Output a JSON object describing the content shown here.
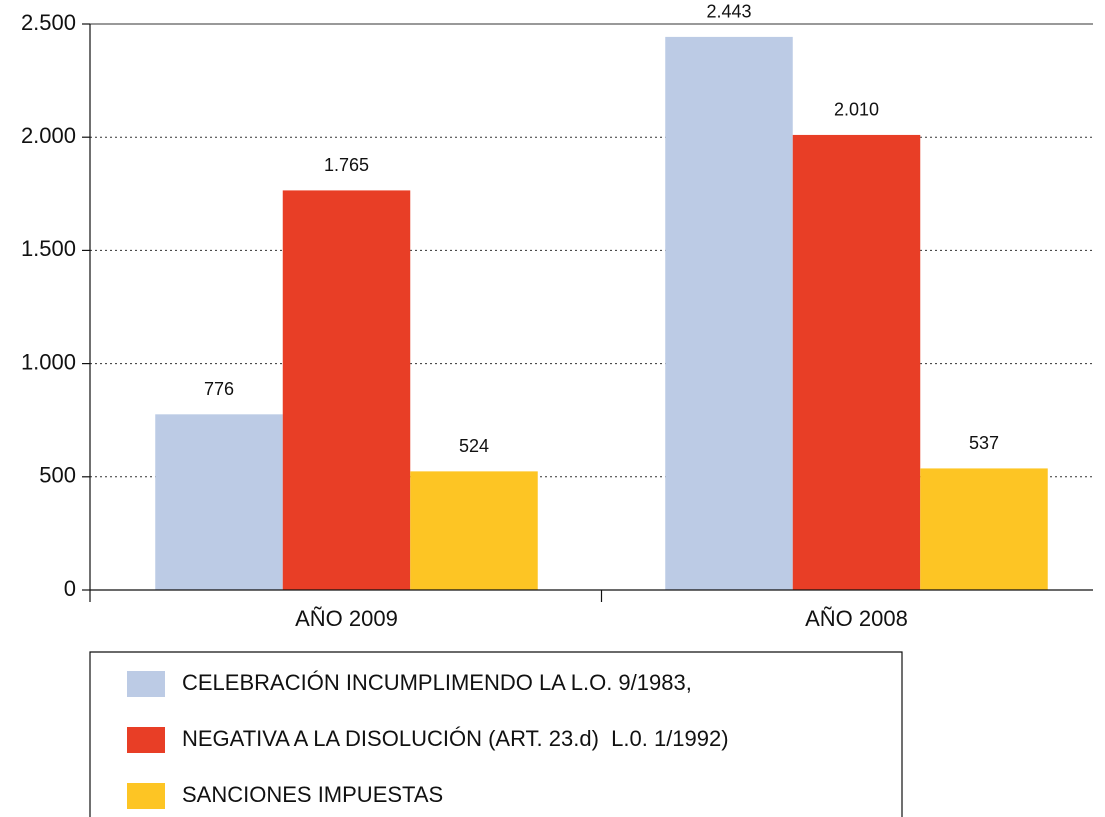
{
  "chart_data": {
    "type": "bar",
    "categories": [
      "AÑO 2009",
      "AÑO 2008"
    ],
    "series": [
      {
        "name": "CELEBRACIÓN INCUMPLIMENDO LA L.O. 9/1983,",
        "color": "#bccbe5",
        "values": [
          776,
          2443
        ],
        "value_labels": [
          "776",
          "2.443"
        ]
      },
      {
        "name": "NEGATIVA A LA DISOLUCIÓN (ART. 23.d)  L.0. 1/1992)",
        "color": "#e83e26",
        "values": [
          1765,
          2010
        ],
        "value_labels": [
          "1.765",
          "2.010"
        ]
      },
      {
        "name": "SANCIONES IMPUESTAS",
        "color": "#fdc524",
        "values": [
          524,
          537
        ],
        "value_labels": [
          "524",
          "537"
        ]
      }
    ],
    "ylim": [
      0,
      2500
    ],
    "yticks": [
      0,
      500,
      {
        "value": 1000,
        "label": "1.000"
      },
      {
        "value": 1500,
        "label": "1.500"
      },
      {
        "value": 2000,
        "label": "2.000"
      },
      {
        "value": 2500,
        "label": "2.500"
      }
    ],
    "grid": true
  }
}
